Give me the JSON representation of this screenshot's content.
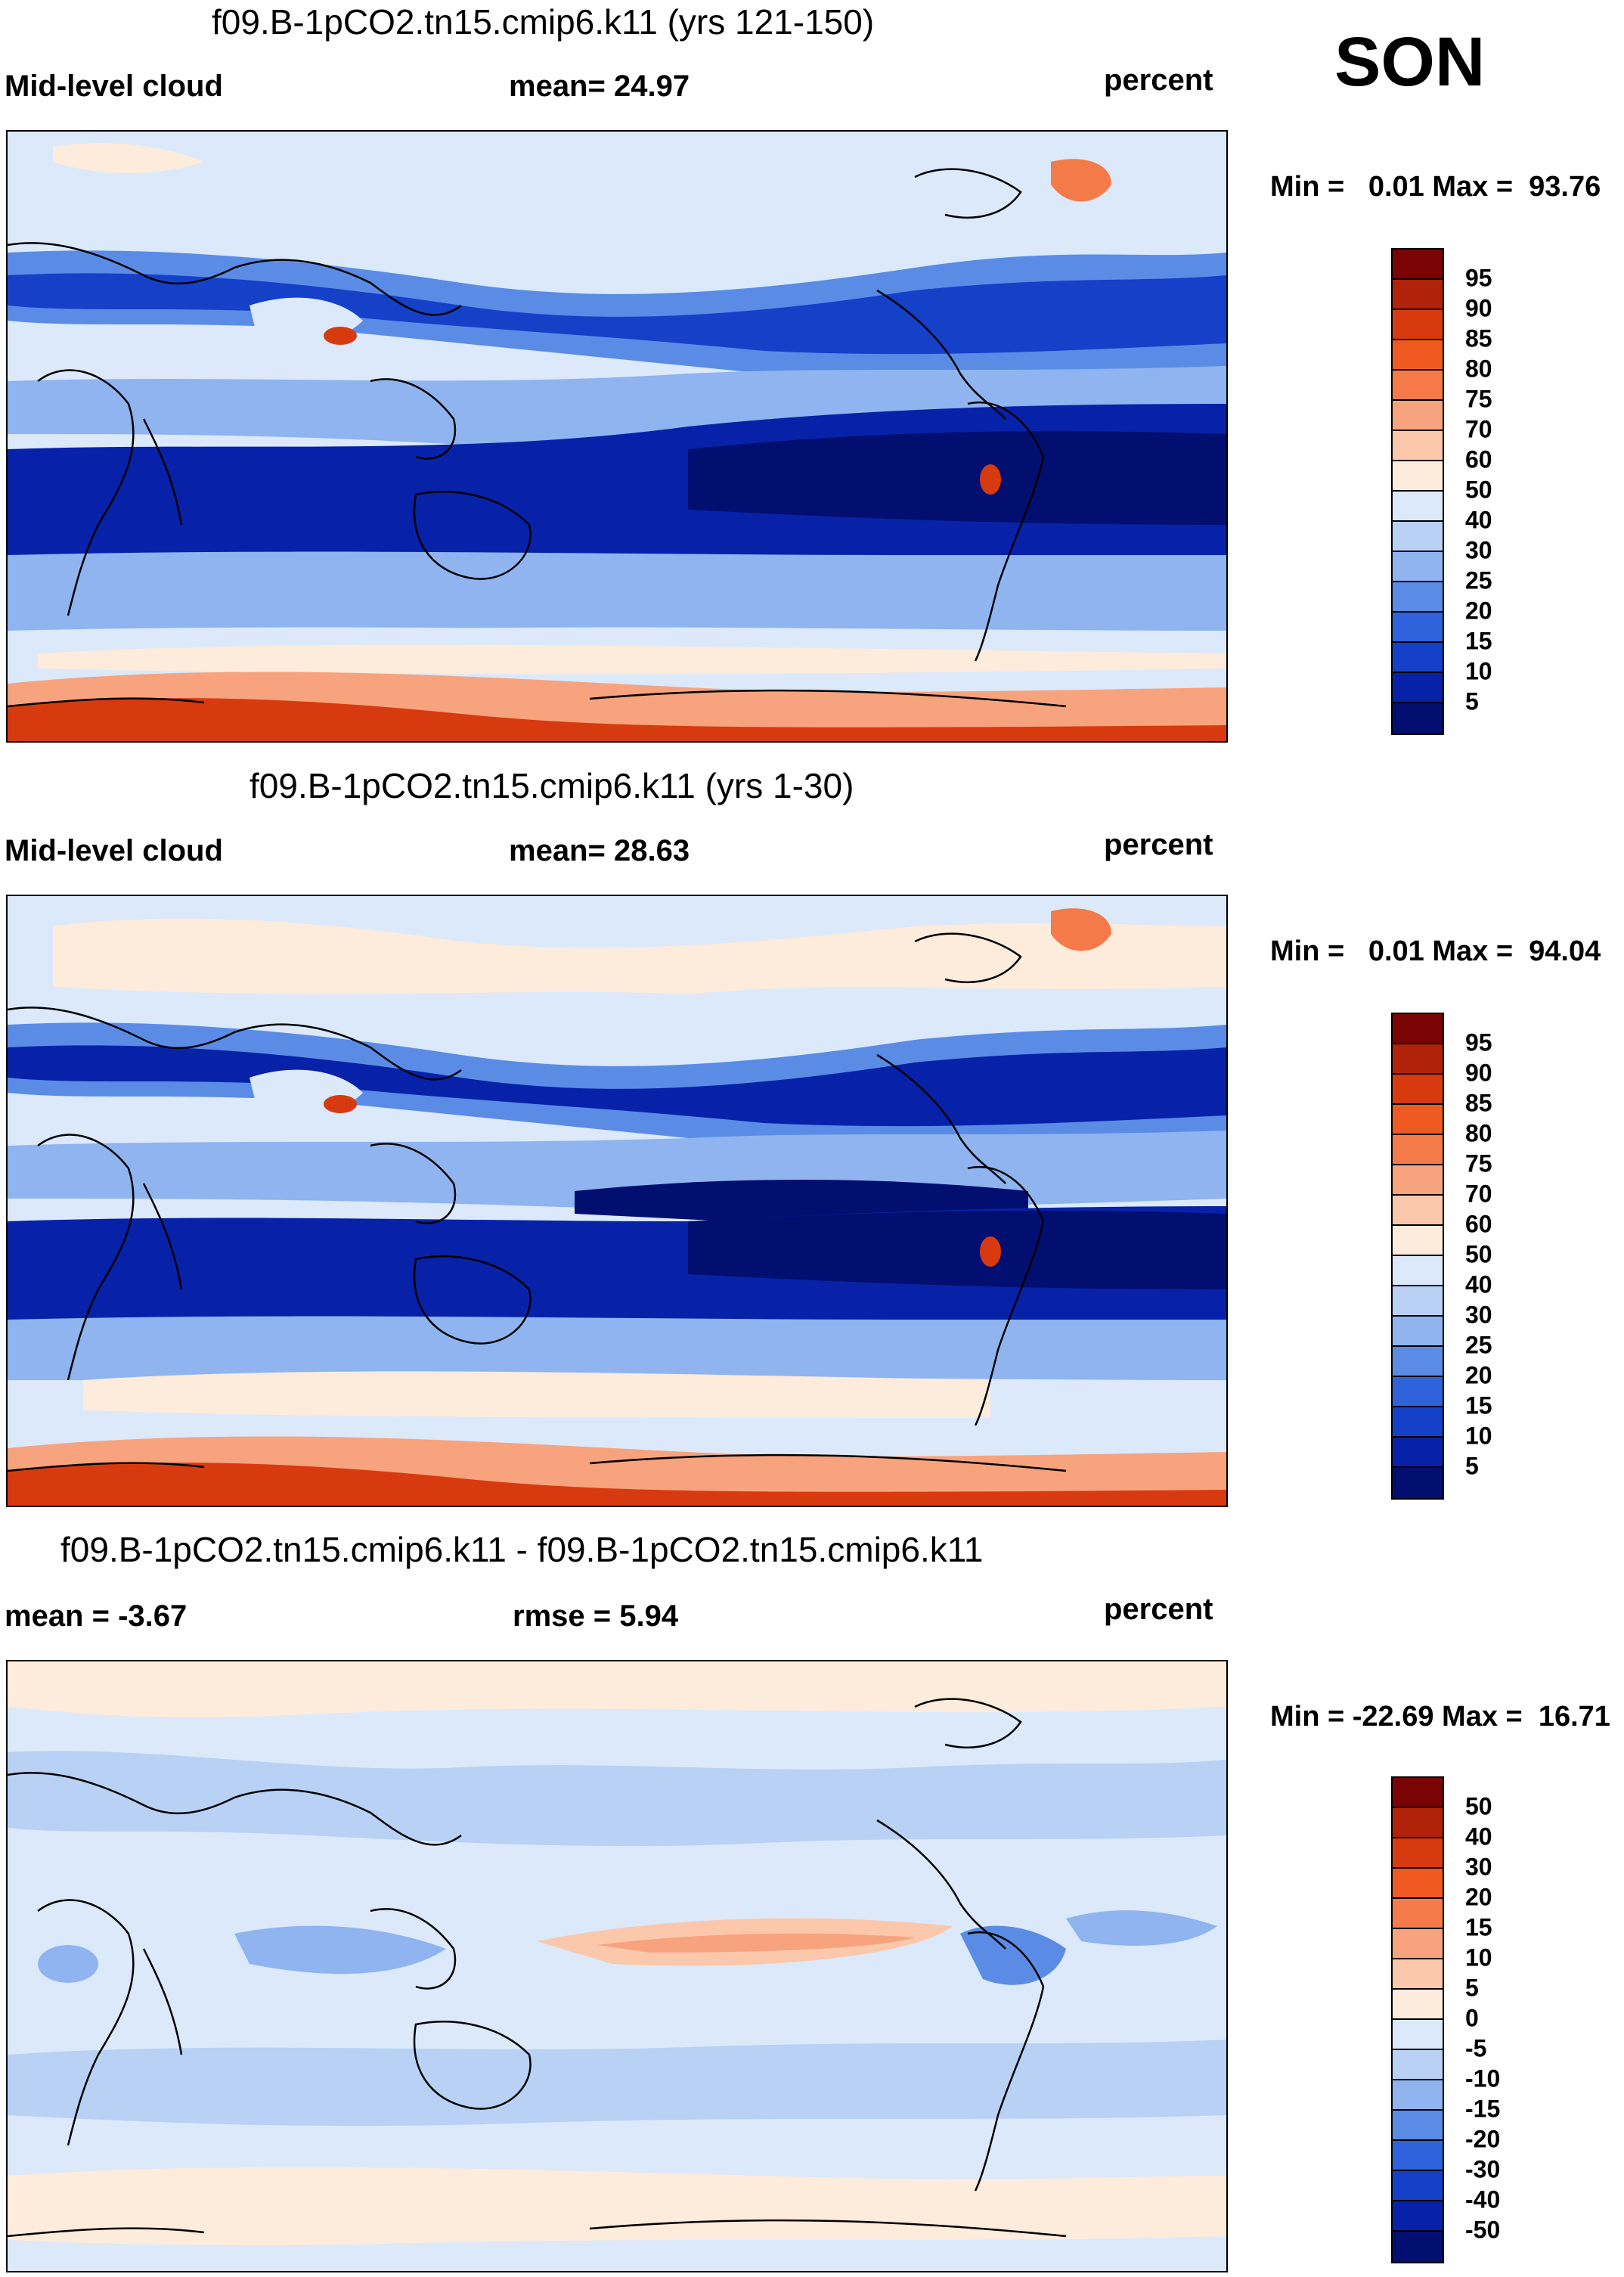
{
  "season": "SON",
  "panels": [
    {
      "title": "f09.B-1pCO2.tn15.cmip6.k11 (yrs 121-150)",
      "left_label": "Mid-level cloud",
      "stat_label": "mean=  24.97",
      "units": "percent",
      "minmax": "Min =   0.01 Max =  93.76"
    },
    {
      "title": "f09.B-1pCO2.tn15.cmip6.k11 (yrs 1-30)",
      "left_label": "Mid-level cloud",
      "stat_label": "mean=  28.63",
      "units": "percent",
      "minmax": "Min =   0.01 Max =  94.04"
    },
    {
      "title": "f09.B-1pCO2.tn15.cmip6.k11 - f09.B-1pCO2.tn15.cmip6.k11",
      "left_label": "mean =  -3.67",
      "stat_label": "rmse =   5.94",
      "units": "percent",
      "minmax": "Min = -22.69 Max =  16.71"
    }
  ],
  "colorbars": {
    "abs": {
      "labels": [
        "95",
        "90",
        "85",
        "80",
        "75",
        "70",
        "60",
        "50",
        "40",
        "30",
        "25",
        "20",
        "15",
        "10",
        "5"
      ],
      "colors": [
        "#7a0403",
        "#b0220a",
        "#d83a10",
        "#ee5a22",
        "#f47a4a",
        "#f7a37e",
        "#fbc8ac",
        "#fdebdc",
        "#dbe9fb",
        "#b8d1f5",
        "#8fb4ef",
        "#5a8ce6",
        "#2f63dc",
        "#1441c8",
        "#0722a8",
        "#030f70"
      ]
    },
    "diff": {
      "labels": [
        "50",
        "40",
        "30",
        "20",
        "15",
        "10",
        "5",
        "0",
        "-5",
        "-10",
        "-15",
        "-20",
        "-30",
        "-40",
        "-50"
      ],
      "colors": [
        "#7a0403",
        "#b0220a",
        "#d83a10",
        "#ee5a22",
        "#f47a4a",
        "#f7a37e",
        "#fbc8ac",
        "#fdebdc",
        "#dbe9fb",
        "#b8d1f5",
        "#8fb4ef",
        "#5a8ce6",
        "#2f63dc",
        "#1441c8",
        "#0722a8",
        "#030f70"
      ]
    }
  }
}
